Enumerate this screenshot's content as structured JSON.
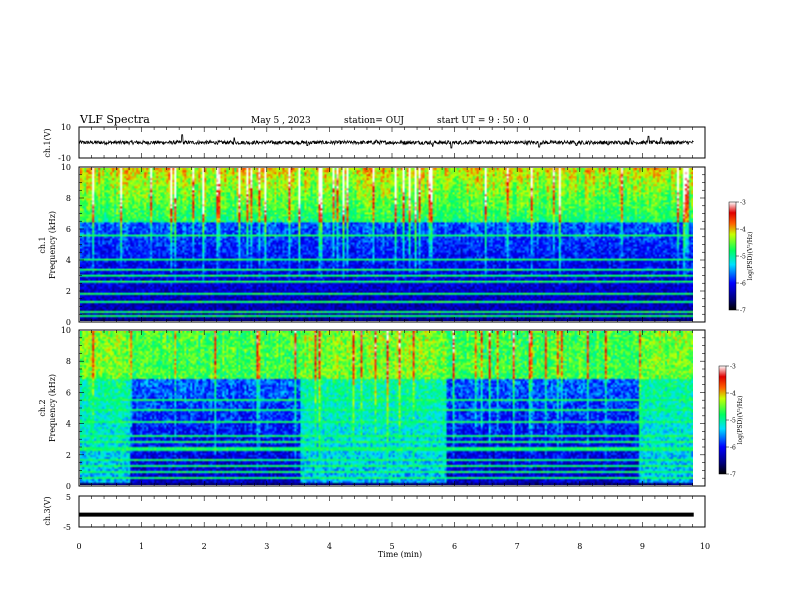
{
  "header": {
    "title": "VLF Spectra",
    "date": "May 5  , 2023",
    "station": "station= OUJ",
    "start": "start  UT  =   9  : 50 : 0"
  },
  "chart_data": [
    {
      "type": "line",
      "name": "ch1-waveform",
      "ylabel": "ch.1(V)",
      "ylim": [
        -10,
        10
      ],
      "ytick_labels": [
        "10",
        "-10"
      ],
      "xlim": [
        0,
        10
      ],
      "baseline": 0,
      "spikes": [
        {
          "t": 1.65,
          "v": 5.0
        },
        {
          "t": 2.48,
          "v": 3.0
        },
        {
          "t": 3.65,
          "v": -2.0
        },
        {
          "t": 4.75,
          "v": 1.5
        },
        {
          "t": 5.65,
          "v": -2.5
        },
        {
          "t": 5.95,
          "v": -3.5
        },
        {
          "t": 6.25,
          "v": 1.2
        },
        {
          "t": 7.35,
          "v": -3.0
        },
        {
          "t": 7.95,
          "v": -2.0
        },
        {
          "t": 8.45,
          "v": -1.5
        },
        {
          "t": 8.8,
          "v": 2.5
        },
        {
          "t": 9.1,
          "v": 4.0
        },
        {
          "t": 9.3,
          "v": 3.0
        }
      ],
      "data_end": 9.82
    },
    {
      "type": "heatmap",
      "name": "ch1-spectrogram",
      "ylabel": "ch.1\nFrequency  (kHz)",
      "ylabel_lines": [
        "ch.1",
        "Frequency  (kHz)"
      ],
      "xlim": [
        0,
        10
      ],
      "ylim": [
        0,
        10
      ],
      "yticks": [
        0,
        2,
        4,
        6,
        8,
        10
      ],
      "colorbar": {
        "label": "log(PSD)(V²/Hz)",
        "ticks": [
          -3,
          -4,
          -5,
          -6,
          -7
        ],
        "range": [
          -7,
          -3
        ]
      },
      "quiet_intervals": [],
      "lines_khz": [
        0.4,
        0.7,
        1.3,
        1.8,
        2.6,
        3.0,
        3.4,
        4.1,
        5.6
      ],
      "data_end": 9.82
    },
    {
      "type": "heatmap",
      "name": "ch2-spectrogram",
      "ylabel_lines": [
        "ch.2",
        "Frequency  (kHz)"
      ],
      "xlim": [
        0,
        10
      ],
      "ylim": [
        0,
        10
      ],
      "yticks": [
        0,
        2,
        4,
        6,
        8,
        10
      ],
      "colorbar": {
        "label": "log(PSD)(V²/Hz)",
        "ticks": [
          -3,
          -4,
          -5,
          -6,
          -7
        ],
        "range": [
          -7,
          -3
        ]
      },
      "quiet_intervals": [
        [
          0.8,
          3.5
        ],
        [
          5.85,
          8.95
        ]
      ],
      "lines_khz": [
        0.5,
        0.9,
        1.3,
        1.7,
        2.4,
        2.9,
        3.3,
        4.1,
        4.9,
        5.6,
        7.6
      ],
      "data_end": 9.82
    },
    {
      "type": "line",
      "name": "ch3-waveform",
      "ylabel": "ch.3(V)",
      "ylim": [
        -5,
        5
      ],
      "ytick_labels": [
        "5",
        "-5"
      ],
      "xlim": [
        0,
        10
      ],
      "level": -1.0,
      "data_end": 9.82
    }
  ],
  "x_axis": {
    "label": "Time  (min)",
    "ticks": [
      "0",
      "1",
      "2",
      "3",
      "4",
      "5",
      "6",
      "7",
      "8",
      "9",
      "10"
    ]
  }
}
